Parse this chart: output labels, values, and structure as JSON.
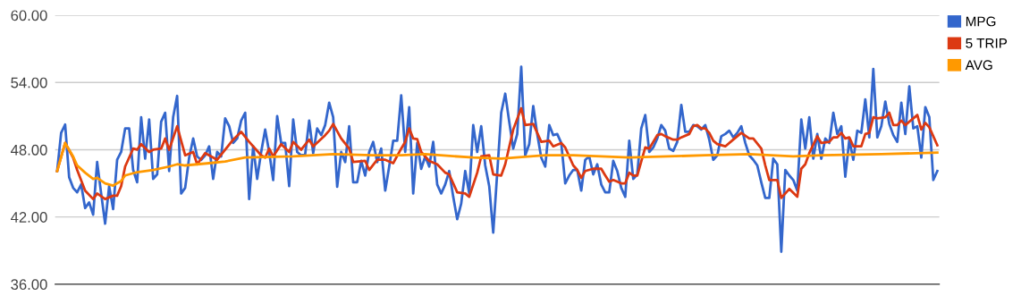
{
  "chart_data": {
    "type": "line",
    "categories": [
      null,
      null,
      null,
      null,
      null,
      null,
      null,
      null,
      null,
      null,
      null,
      null,
      null,
      null,
      null,
      null,
      null,
      null,
      null,
      null,
      null,
      null,
      null,
      null,
      null,
      null,
      null,
      null,
      null,
      null,
      null,
      null,
      null,
      null,
      null,
      null,
      null,
      null,
      null,
      null,
      null,
      null,
      null,
      null,
      null,
      null,
      null,
      null,
      null,
      null,
      null,
      null,
      null,
      null,
      null,
      null,
      null,
      null,
      null,
      null,
      null,
      null,
      null,
      null,
      null,
      null,
      null,
      null,
      null,
      null,
      null,
      null,
      null,
      null,
      null,
      null,
      null,
      null,
      null,
      null,
      null,
      null,
      null,
      null,
      null,
      null,
      null,
      null,
      null,
      null,
      null,
      null,
      null,
      null,
      null,
      null,
      null,
      null,
      null,
      null,
      null,
      null,
      null,
      null,
      null,
      null,
      null,
      null,
      null,
      null,
      null,
      null,
      null,
      null,
      null,
      null,
      null,
      null,
      null,
      null,
      null,
      null,
      null,
      null,
      null,
      null,
      null,
      null,
      null,
      null,
      null,
      null,
      null,
      null,
      null,
      null,
      null,
      null,
      null,
      null,
      null,
      null,
      null,
      null,
      null,
      null,
      null,
      null,
      null,
      null,
      null,
      null,
      null,
      null,
      null,
      null,
      null,
      null,
      null,
      null,
      null,
      null,
      null,
      null,
      null,
      null,
      null,
      null,
      null,
      null,
      null,
      null,
      null,
      null,
      null,
      null,
      null,
      null,
      null,
      null,
      null,
      null,
      null,
      null,
      null,
      null,
      null,
      null,
      null,
      null,
      null,
      null,
      null,
      null,
      null,
      null,
      null,
      null,
      null,
      null,
      null,
      null,
      null,
      null,
      null,
      null,
      null,
      null,
      null,
      null,
      null,
      null,
      null,
      null,
      null,
      null,
      null,
      null,
      null,
      null,
      null
    ],
    "series": [
      {
        "name": "MPG",
        "color": "#3366cc",
        "values": [
          46.1,
          49.5,
          50.25,
          45.55,
          44.6,
          44.2,
          44.9,
          42.8,
          43.3,
          42.2,
          46.9,
          44.1,
          41.4,
          44.75,
          42.7,
          47.1,
          47.8,
          49.9,
          49.9,
          46.2,
          45.1,
          50.9,
          47.2,
          50.7,
          45.4,
          45.8,
          50.5,
          51.3,
          46.1,
          50.9,
          52.8,
          44.1,
          44.6,
          47.3,
          49.0,
          47.4,
          47.1,
          47.5,
          48.3,
          45.4,
          47.8,
          47.4,
          50.8,
          50.1,
          48.6,
          49.0,
          50.6,
          51.3,
          43.6,
          48.3,
          45.4,
          47.8,
          49.8,
          47.8,
          45.3,
          51.0,
          48.6,
          48.6,
          44.75,
          50.7,
          47.8,
          47.5,
          47.6,
          50.6,
          47.7,
          49.9,
          49.3,
          50.2,
          52.2,
          50.9,
          44.7,
          47.8,
          46.9,
          50.1,
          45.1,
          45.1,
          47.0,
          45.7,
          47.8,
          48.7,
          46.9,
          48.1,
          44.35,
          46.5,
          48.8,
          48.8,
          52.85,
          47.8,
          51.8,
          44.1,
          48.6,
          46.3,
          47.4,
          46.5,
          48.7,
          44.9,
          44.1,
          44.9,
          46.1,
          43.8,
          41.8,
          43.2,
          46.1,
          44.1,
          50.2,
          47.8,
          50.1,
          46.6,
          44.75,
          40.6,
          45.95,
          51.3,
          53.0,
          50.5,
          48.1,
          49.4,
          55.4,
          47.5,
          48.5,
          51.9,
          49.4,
          47.3,
          46.5,
          50.2,
          49.3,
          49.4,
          48.6,
          45.0,
          45.7,
          46.2,
          46.2,
          44.35,
          47.1,
          47.4,
          45.8,
          46.7,
          44.9,
          44.2,
          44.2,
          47.0,
          46.1,
          44.6,
          43.8,
          48.8,
          45.4,
          45.8,
          49.9,
          51.1,
          47.8,
          48.2,
          49.0,
          50.2,
          49.7,
          48.1,
          47.9,
          48.7,
          52.0,
          49.6,
          49.6,
          50.2,
          50.1,
          49.8,
          50.2,
          48.9,
          47.1,
          47.5,
          49.2,
          49.4,
          49.7,
          49.1,
          49.5,
          50.1,
          48.6,
          47.5,
          47.1,
          46.6,
          45.1,
          43.7,
          43.7,
          47.2,
          46.7,
          38.9,
          46.2,
          45.7,
          45.3,
          44.35,
          50.7,
          48.1,
          50.9,
          47.2,
          49.4,
          47.2,
          49.0,
          48.6,
          51.3,
          49.4,
          50.1,
          45.6,
          48.9,
          47.1,
          49.7,
          49.5,
          52.5,
          49.1,
          55.2,
          49.1,
          50.1,
          52.3,
          50.3,
          49.3,
          48.7,
          52.2,
          49.4,
          53.65,
          49.9,
          50.1,
          47.3,
          51.8,
          50.9,
          45.3,
          46.1
        ]
      },
      {
        "name": "5 TRIP",
        "color": "#dc3912",
        "values": [
          46.1,
          null,
          48.6,
          null,
          47.3,
          46.2,
          null,
          44.35,
          null,
          43.6,
          44.1,
          null,
          43.6,
          null,
          43.9,
          43.9,
          44.75,
          46.5,
          null,
          48.1,
          48.0,
          48.5,
          null,
          47.8,
          48.0,
          null,
          48.1,
          49.0,
          48.0,
          null,
          50.1,
          null,
          47.5,
          null,
          47.8,
          46.7,
          null,
          47.7,
          null,
          null,
          47.1,
          null,
          48.0,
          null,
          48.9,
          null,
          49.6,
          null,
          48.7,
          null,
          null,
          47.5,
          47.3,
          48.1,
          47.4,
          null,
          48.5,
          null,
          47.8,
          48.7,
          null,
          48.0,
          null,
          48.9,
          48.3,
          null,
          null,
          49.3,
          49.7,
          50.3,
          null,
          49.0,
          null,
          48.1,
          46.9,
          null,
          null,
          47.0,
          46.2,
          null,
          47.1,
          null,
          47.1,
          null,
          46.8,
          null,
          48.1,
          48.7,
          49.9,
          49.0,
          48.95,
          47.8,
          null,
          47.0,
          null,
          46.7,
          null,
          45.95,
          45.8,
          null,
          44.2,
          null,
          44.1,
          43.8,
          null,
          45.95,
          47.4,
          null,
          47.5,
          45.8,
          null,
          45.7,
          46.7,
          null,
          49.8,
          null,
          51.7,
          50.2,
          null,
          50.3,
          null,
          48.7,
          null,
          48.8,
          48.3,
          null,
          48.6,
          48.2,
          null,
          46.6,
          46.2,
          45.5,
          46.1,
          null,
          46.3,
          null,
          46.3,
          45.7,
          45.15,
          45.3,
          null,
          45.0,
          45.0,
          45.95,
          45.7,
          45.7,
          null,
          48.2,
          48.1,
          null,
          49.3,
          49.4,
          49.2,
          null,
          48.9,
          48.9,
          49.1,
          null,
          49.4,
          50.1,
          50.2,
          49.9,
          49.9,
          49.5,
          48.8,
          48.5,
          48.4,
          48.3,
          null,
          48.9,
          null,
          49.5,
          null,
          49.0,
          49.0,
          null,
          48.1,
          46.6,
          45.3,
          null,
          45.3,
          43.7,
          null,
          44.5,
          null,
          43.8,
          46.3,
          46.7,
          47.7,
          null,
          49.2,
          48.6,
          null,
          48.7,
          49.1,
          49.1,
          49.5,
          49.0,
          49.1,
          48.3,
          null,
          48.3,
          49.4,
          49.5,
          50.9,
          50.8,
          null,
          50.9,
          51.3,
          50.2,
          50.2,
          50.6,
          50.2,
          null,
          50.8,
          51.1,
          49.8,
          50.4,
          50.0,
          null,
          48.4
        ]
      },
      {
        "name": "AVG",
        "color": "#ff9900",
        "values": [
          46.1,
          null,
          48.6,
          null,
          47.4,
          46.6,
          null,
          45.95,
          null,
          45.4,
          45.5,
          null,
          45.0,
          null,
          44.8,
          null,
          45.2,
          45.7,
          null,
          null,
          46.0,
          null,
          null,
          null,
          46.2,
          null,
          null,
          null,
          46.5,
          null,
          46.7,
          null,
          46.6,
          null,
          null,
          null,
          null,
          null,
          46.8,
          null,
          null,
          null,
          46.95,
          null,
          null,
          null,
          null,
          47.3,
          null,
          null,
          null,
          null,
          null,
          null,
          null,
          null,
          null,
          null,
          null,
          47.4,
          null,
          null,
          null,
          null,
          null,
          null,
          null,
          null,
          null,
          47.6,
          null,
          null,
          null,
          null,
          null,
          null,
          null,
          null,
          null,
          47.5,
          null,
          null,
          null,
          null,
          null,
          null,
          47.5,
          null,
          null,
          null,
          null,
          null,
          47.6,
          null,
          null,
          null,
          null,
          null,
          null,
          null,
          null,
          null,
          null,
          null,
          47.3,
          null,
          null,
          null,
          null,
          null,
          null,
          47.2,
          null,
          null,
          null,
          null,
          null,
          null,
          null,
          null,
          null,
          null,
          47.5,
          null,
          null,
          null,
          null,
          null,
          null,
          47.5,
          null,
          null,
          null,
          null,
          null,
          null,
          null,
          null,
          null,
          null,
          null,
          null,
          null,
          47.3,
          null,
          null,
          null,
          null,
          null,
          null,
          null,
          null,
          null,
          null,
          null,
          null,
          null,
          null,
          null,
          null,
          null,
          null,
          47.5,
          null,
          null,
          null,
          null,
          null,
          null,
          null,
          null,
          null,
          null,
          47.6,
          null,
          null,
          null,
          null,
          null,
          null,
          null,
          null,
          null,
          null,
          47.4,
          null,
          null,
          null,
          null,
          null,
          null,
          47.5,
          null,
          null,
          null,
          null,
          null,
          null,
          null,
          null,
          null,
          null,
          null,
          null,
          null,
          null,
          47.6,
          null,
          null,
          null,
          null,
          null,
          null,
          null,
          null,
          null,
          null,
          null,
          null,
          null,
          47.75
        ]
      }
    ],
    "ylim": [
      36,
      60
    ],
    "yticks": [
      {
        "value": 36,
        "label": "36.00"
      },
      {
        "value": 42,
        "label": "42.00"
      },
      {
        "value": 48,
        "label": "48.00"
      },
      {
        "value": 54,
        "label": "54.00"
      },
      {
        "value": 60,
        "label": "60.00"
      }
    ],
    "grid": "y",
    "legend": "top right",
    "tick_labels": "y",
    "marker": "none",
    "line_style": "solid"
  }
}
